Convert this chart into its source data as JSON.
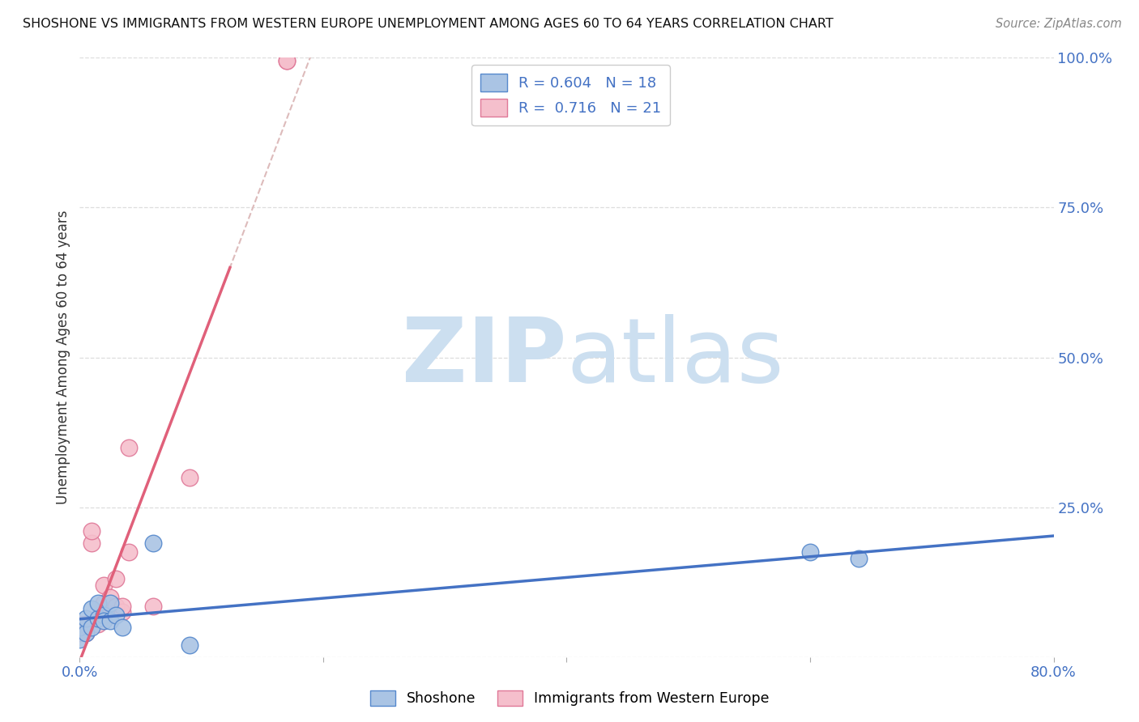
{
  "title": "SHOSHONE VS IMMIGRANTS FROM WESTERN EUROPE UNEMPLOYMENT AMONG AGES 60 TO 64 YEARS CORRELATION CHART",
  "source": "Source: ZipAtlas.com",
  "ylabel": "Unemployment Among Ages 60 to 64 years",
  "xlim": [
    0.0,
    0.8
  ],
  "ylim": [
    0.0,
    1.0
  ],
  "xticks": [
    0.0,
    0.2,
    0.4,
    0.6,
    0.8
  ],
  "xtick_labels": [
    "0.0%",
    "",
    "",
    "",
    "80.0%"
  ],
  "yticks": [
    0.0,
    0.25,
    0.5,
    0.75,
    1.0
  ],
  "ytick_labels": [
    "",
    "25.0%",
    "50.0%",
    "75.0%",
    "100.0%"
  ],
  "shoshone_x": [
    0.0,
    0.0,
    0.005,
    0.005,
    0.01,
    0.01,
    0.015,
    0.015,
    0.02,
    0.02,
    0.025,
    0.025,
    0.03,
    0.035,
    0.06,
    0.09,
    0.6,
    0.64
  ],
  "shoshone_y": [
    0.03,
    0.05,
    0.04,
    0.065,
    0.05,
    0.08,
    0.065,
    0.09,
    0.07,
    0.06,
    0.06,
    0.09,
    0.07,
    0.05,
    0.19,
    0.02,
    0.175,
    0.165
  ],
  "immigrants_x": [
    0.0,
    0.0,
    0.005,
    0.005,
    0.01,
    0.01,
    0.015,
    0.02,
    0.02,
    0.025,
    0.025,
    0.03,
    0.03,
    0.035,
    0.035,
    0.04,
    0.04,
    0.06,
    0.09,
    0.17,
    0.17
  ],
  "immigrants_y": [
    0.04,
    0.055,
    0.04,
    0.055,
    0.19,
    0.21,
    0.055,
    0.09,
    0.12,
    0.07,
    0.1,
    0.085,
    0.13,
    0.075,
    0.085,
    0.175,
    0.35,
    0.085,
    0.3,
    0.995,
    0.995
  ],
  "shoshone_color": "#aac4e4",
  "shoshone_edge_color": "#5588cc",
  "immigrants_color": "#f5bfcc",
  "immigrants_edge_color": "#e07898",
  "shoshone_R": 0.604,
  "shoshone_N": 18,
  "immigrants_R": 0.716,
  "immigrants_N": 21,
  "trend_blue_color": "#4472c4",
  "trend_pink_color": "#e0607a",
  "trend_pink_dashed_color": "#ddbbbb",
  "watermark_zip": "ZIP",
  "watermark_atlas": "atlas",
  "watermark_color": "#ccdff0",
  "legend_text_color": "#4472c4",
  "background_color": "#ffffff",
  "grid_color": "#dddddd"
}
